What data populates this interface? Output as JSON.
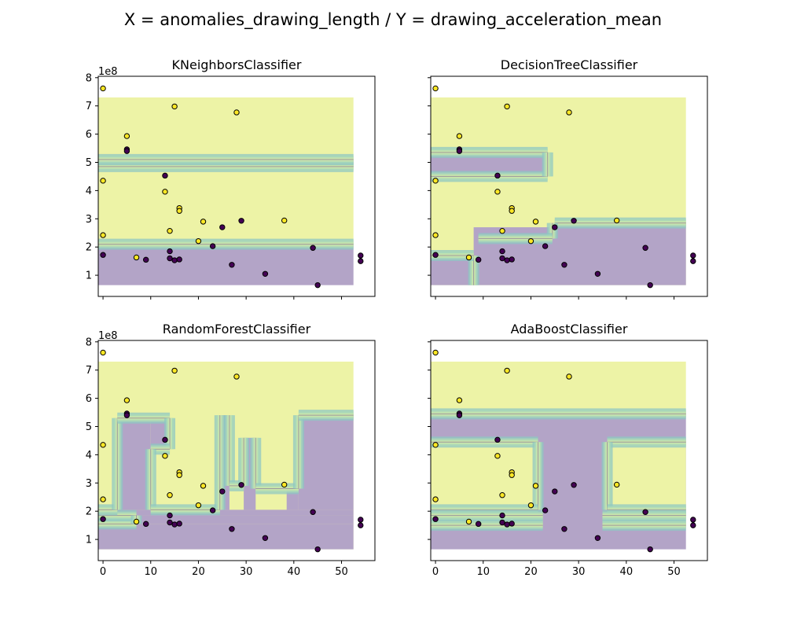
{
  "figure": {
    "title": "X = anomalies_drawing_length / Y = drawing_acceleration_mean"
  },
  "colors": {
    "class_0_point": "#440154",
    "class_1_point": "#fde725",
    "region_class_0": "#b3a4c7",
    "region_class_1": "#edf3a6",
    "boundary_band": [
      "#8fc7c3",
      "#a8d8b8",
      "#c5e4ad",
      "#d9eba6"
    ],
    "marker_edge": "#000000",
    "axes_edge": "#000000"
  },
  "chart_data": [
    {
      "type": "scatter",
      "title": "KNeighborsClassifier",
      "xlim": [
        -1,
        57
      ],
      "ylim": [
        0.25,
        8.05
      ],
      "y_offset_label": "1e8",
      "xticks": [
        0,
        10,
        20,
        30,
        40,
        50
      ],
      "yticks": [
        1,
        2,
        3,
        4,
        5,
        6,
        7,
        8
      ],
      "show_xticklabels": false,
      "show_yticklabels": true,
      "regions": [
        {
          "class": 1,
          "x0": -1,
          "x1": 52.5,
          "y0": 2.1,
          "y1": 7.3
        },
        {
          "class": 0,
          "x0": -1,
          "x1": 52.5,
          "y0": 0.65,
          "y1": 2.1
        },
        {
          "class": 0,
          "x0": -1,
          "x1": 52.5,
          "y0": 4.85,
          "y1": 5.1
        }
      ],
      "boundaries": [
        {
          "type": "h",
          "y": 2.1,
          "x0": -1,
          "x1": 52.5
        },
        {
          "type": "h",
          "y": 4.85,
          "x0": -1,
          "x1": 52.5
        },
        {
          "type": "h",
          "y": 5.1,
          "x0": -1,
          "x1": 52.5
        }
      ]
    },
    {
      "type": "scatter",
      "title": "DecisionTreeClassifier",
      "xlim": [
        -1,
        57
      ],
      "ylim": [
        0.25,
        8.05
      ],
      "y_offset_label": "",
      "xticks": [
        0,
        10,
        20,
        30,
        40,
        50
      ],
      "yticks": [
        1,
        2,
        3,
        4,
        5,
        6,
        7,
        8
      ],
      "show_xticklabels": false,
      "show_yticklabels": false,
      "regions": [
        {
          "class": 1,
          "x0": -1,
          "x1": 52.5,
          "y0": 0.65,
          "y1": 7.3
        },
        {
          "class": 0,
          "x0": -1,
          "x1": 23.5,
          "y0": 4.5,
          "y1": 5.35
        },
        {
          "class": 0,
          "x0": 8,
          "x1": 52.5,
          "y0": 0.65,
          "y1": 2.7
        },
        {
          "class": 0,
          "x0": 24,
          "x1": 52.5,
          "y0": 2.7,
          "y1": 2.85
        },
        {
          "class": 0,
          "x0": -1,
          "x1": 8,
          "y0": 0.65,
          "y1": 1.7
        }
      ],
      "boundaries": [
        {
          "type": "h",
          "y": 5.35,
          "x0": -1,
          "x1": 23.5
        },
        {
          "type": "h",
          "y": 4.5,
          "x0": -1,
          "x1": 23.5
        },
        {
          "type": "v",
          "x": 23.5,
          "y0": 4.5,
          "y1": 5.35
        },
        {
          "type": "h",
          "y": 2.85,
          "x0": 25,
          "x1": 52.5
        },
        {
          "type": "v",
          "x": 24.5,
          "y0": 2.3,
          "y1": 2.85
        },
        {
          "type": "h",
          "y": 2.3,
          "x0": 9,
          "x1": 24.5
        },
        {
          "type": "v",
          "x": 8,
          "y0": 0.65,
          "y1": 1.7
        },
        {
          "type": "h",
          "y": 1.7,
          "x0": -1,
          "x1": 8
        }
      ]
    },
    {
      "type": "scatter",
      "title": "RandomForestClassifier",
      "xlim": [
        -1,
        57
      ],
      "ylim": [
        0.25,
        8.05
      ],
      "y_offset_label": "1e8",
      "xticks": [
        0,
        10,
        20,
        30,
        40,
        50
      ],
      "yticks": [
        1,
        2,
        3,
        4,
        5,
        6,
        7,
        8
      ],
      "show_xticklabels": true,
      "show_yticklabels": true,
      "regions": [
        {
          "class": 1,
          "x0": -1,
          "x1": 52.5,
          "y0": 0.65,
          "y1": 7.3
        },
        {
          "class": 0,
          "x0": -1,
          "x1": 52.5,
          "y0": 0.65,
          "y1": 1.55
        },
        {
          "class": 0,
          "x0": 7,
          "x1": 52.5,
          "y0": 1.55,
          "y1": 1.85
        },
        {
          "class": 0,
          "x0": -1,
          "x1": 52.5,
          "y0": 1.85,
          "y1": 2.05
        },
        {
          "class": 0,
          "x0": 3,
          "x1": 10,
          "y0": 2.05,
          "y1": 5.3
        },
        {
          "class": 0,
          "x0": 10,
          "x1": 14,
          "y0": 4.2,
          "y1": 5.3
        },
        {
          "class": 0,
          "x0": 24.5,
          "x1": 26.5,
          "y0": 2.05,
          "y1": 5.4
        },
        {
          "class": 0,
          "x0": 29.5,
          "x1": 32,
          "y0": 2.05,
          "y1": 4.6
        },
        {
          "class": 0,
          "x0": 38.5,
          "x1": 41,
          "y0": 2.05,
          "y1": 2.8
        },
        {
          "class": 0,
          "x0": 41,
          "x1": 52.5,
          "y0": 2.05,
          "y1": 5.4
        }
      ],
      "boundaries": [
        {
          "type": "h",
          "y": 1.55,
          "x0": -1,
          "x1": 7
        },
        {
          "type": "h",
          "y": 1.85,
          "x0": -1,
          "x1": 7
        },
        {
          "type": "v",
          "x": 7,
          "y0": 1.55,
          "y1": 1.85
        },
        {
          "type": "h",
          "y": 2.05,
          "x0": -1,
          "x1": 3
        },
        {
          "type": "v",
          "x": 3,
          "y0": 2.05,
          "y1": 5.3
        },
        {
          "type": "h",
          "y": 5.3,
          "x0": 3,
          "x1": 14
        },
        {
          "type": "v",
          "x": 14,
          "y0": 4.2,
          "y1": 5.3
        },
        {
          "type": "h",
          "y": 4.2,
          "x0": 10,
          "x1": 14
        },
        {
          "type": "v",
          "x": 10,
          "y0": 2.05,
          "y1": 4.2
        },
        {
          "type": "h",
          "y": 2.05,
          "x0": 10,
          "x1": 24.5
        },
        {
          "type": "v",
          "x": 24.5,
          "y0": 2.05,
          "y1": 5.4
        },
        {
          "type": "v",
          "x": 26.5,
          "y0": 2.9,
          "y1": 5.4
        },
        {
          "type": "h",
          "y": 2.9,
          "x0": 26.5,
          "x1": 29.5
        },
        {
          "type": "v",
          "x": 29.5,
          "y0": 2.9,
          "y1": 4.6
        },
        {
          "type": "v",
          "x": 32,
          "y0": 2.8,
          "y1": 4.6
        },
        {
          "type": "h",
          "y": 2.8,
          "x0": 32,
          "x1": 41
        },
        {
          "type": "v",
          "x": 41,
          "y0": 2.8,
          "y1": 5.4
        },
        {
          "type": "h",
          "y": 5.4,
          "x0": 41,
          "x1": 52.5
        }
      ]
    },
    {
      "type": "scatter",
      "title": "AdaBoostClassifier",
      "xlim": [
        -1,
        57
      ],
      "ylim": [
        0.25,
        8.05
      ],
      "y_offset_label": "",
      "xticks": [
        0,
        10,
        20,
        30,
        40,
        50
      ],
      "yticks": [
        1,
        2,
        3,
        4,
        5,
        6,
        7,
        8
      ],
      "show_xticklabels": true,
      "show_yticklabels": false,
      "regions": [
        {
          "class": 1,
          "x0": -1,
          "x1": 52.5,
          "y0": 5.45,
          "y1": 7.3
        },
        {
          "class": 0,
          "x0": -1,
          "x1": 52.5,
          "y0": 0.65,
          "y1": 5.45
        },
        {
          "class": 1,
          "x0": -1,
          "x1": 21.5,
          "y0": 2.05,
          "y1": 4.45
        },
        {
          "class": 1,
          "x0": 36,
          "x1": 52.5,
          "y0": 2.05,
          "y1": 4.45
        },
        {
          "class": 1,
          "x0": -1,
          "x1": 22.5,
          "y0": 1.5,
          "y1": 1.85
        },
        {
          "class": 1,
          "x0": 35,
          "x1": 52.5,
          "y0": 1.5,
          "y1": 1.85
        }
      ],
      "boundaries": [
        {
          "type": "h",
          "y": 5.45,
          "x0": -1,
          "x1": 52.5
        },
        {
          "type": "h",
          "y": 4.45,
          "x0": -1,
          "x1": 21.5
        },
        {
          "type": "v",
          "x": 21.5,
          "y0": 2.05,
          "y1": 4.45
        },
        {
          "type": "h",
          "y": 2.05,
          "x0": -1,
          "x1": 21.5
        },
        {
          "type": "h",
          "y": 4.45,
          "x0": 36,
          "x1": 52.5
        },
        {
          "type": "v",
          "x": 36,
          "y0": 2.05,
          "y1": 4.45
        },
        {
          "type": "h",
          "y": 2.05,
          "x0": 36,
          "x1": 52.5
        },
        {
          "type": "h",
          "y": 1.85,
          "x0": -1,
          "x1": 22.5
        },
        {
          "type": "h",
          "y": 1.5,
          "x0": -1,
          "x1": 22.5
        },
        {
          "type": "h",
          "y": 1.85,
          "x0": 35,
          "x1": 52.5
        },
        {
          "type": "h",
          "y": 1.5,
          "x0": 35,
          "x1": 52.5
        }
      ]
    }
  ],
  "points": [
    {
      "x": 0,
      "y": 7.62,
      "class": 1
    },
    {
      "x": 15,
      "y": 6.98,
      "class": 1
    },
    {
      "x": 28,
      "y": 6.77,
      "class": 1
    },
    {
      "x": 5,
      "y": 5.93,
      "class": 1
    },
    {
      "x": 5,
      "y": 5.46,
      "class": 0
    },
    {
      "x": 5,
      "y": 5.4,
      "class": 0
    },
    {
      "x": 13,
      "y": 4.53,
      "class": 0
    },
    {
      "x": 0,
      "y": 4.35,
      "class": 1
    },
    {
      "x": 13,
      "y": 3.96,
      "class": 1
    },
    {
      "x": 16,
      "y": 3.38,
      "class": 1
    },
    {
      "x": 16,
      "y": 3.28,
      "class": 1
    },
    {
      "x": 21,
      "y": 2.9,
      "class": 1
    },
    {
      "x": 29,
      "y": 2.93,
      "class": 0
    },
    {
      "x": 38,
      "y": 2.94,
      "class": 1
    },
    {
      "x": 25,
      "y": 2.7,
      "class": 0
    },
    {
      "x": 14,
      "y": 2.57,
      "class": 1
    },
    {
      "x": 0,
      "y": 2.42,
      "class": 1
    },
    {
      "x": 20,
      "y": 2.21,
      "class": 1
    },
    {
      "x": 23,
      "y": 2.03,
      "class": 0
    },
    {
      "x": 44,
      "y": 1.97,
      "class": 0
    },
    {
      "x": 14,
      "y": 1.85,
      "class": 0
    },
    {
      "x": 0,
      "y": 1.72,
      "class": 0
    },
    {
      "x": 54,
      "y": 1.7,
      "class": 0
    },
    {
      "x": 7,
      "y": 1.63,
      "class": 1
    },
    {
      "x": 14,
      "y": 1.6,
      "class": 0
    },
    {
      "x": 9,
      "y": 1.55,
      "class": 0
    },
    {
      "x": 15,
      "y": 1.53,
      "class": 0
    },
    {
      "x": 16,
      "y": 1.56,
      "class": 0
    },
    {
      "x": 54,
      "y": 1.5,
      "class": 0
    },
    {
      "x": 27,
      "y": 1.37,
      "class": 0
    },
    {
      "x": 34,
      "y": 1.05,
      "class": 0
    },
    {
      "x": 45,
      "y": 0.65,
      "class": 0
    }
  ]
}
